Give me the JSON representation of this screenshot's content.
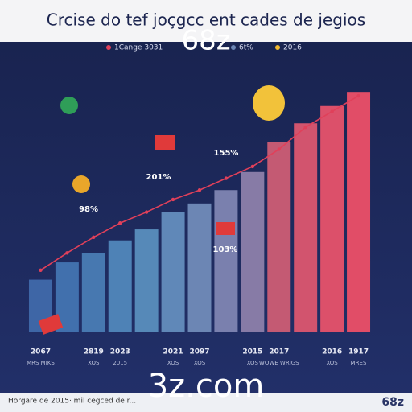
{
  "chart_data": {
    "type": "bar",
    "title": "Crcise do tef joçgcc ent cades de jegios",
    "watermark_top": "68z",
    "watermark_bottom": "3z.com",
    "legend": [
      "1Cange 3031",
      "6t%",
      "2016"
    ],
    "categories": [
      "2067",
      null,
      "2819",
      "2023",
      null,
      "2021",
      "2097",
      null,
      "2015",
      "2017",
      null,
      "2016",
      "1917"
    ],
    "sublabels": [
      "MRS MIKS",
      null,
      "XOS",
      "2015",
      null,
      "XOS",
      "XOS",
      null,
      "XOS",
      "WOWE WRIGS",
      null,
      "XOS",
      "MRES"
    ],
    "values": [
      66,
      88,
      100,
      116,
      130,
      152,
      163,
      180,
      203,
      241,
      265,
      287,
      305
    ],
    "colors": [
      "#3e66a6",
      "#4170ad",
      "#4778b0",
      "#4e82b6",
      "#5689b8",
      "#6088b8",
      "#6c86b4",
      "#7a80ae",
      "#877ba6",
      "#c45a73",
      "#d2546e",
      "#dc506a",
      "#e14d67"
    ],
    "line": {
      "color": "#e0405a",
      "values": [
        78,
        100,
        120,
        138,
        152,
        168,
        180,
        195,
        210,
        232,
        260,
        280,
        300
      ]
    },
    "annotations": [
      "98%",
      "201%",
      "155%",
      "103%"
    ],
    "ylim": [
      0,
      340
    ],
    "footer": "Horgare de 2015· mil cegced de r...",
    "footer_logo": "68z"
  }
}
